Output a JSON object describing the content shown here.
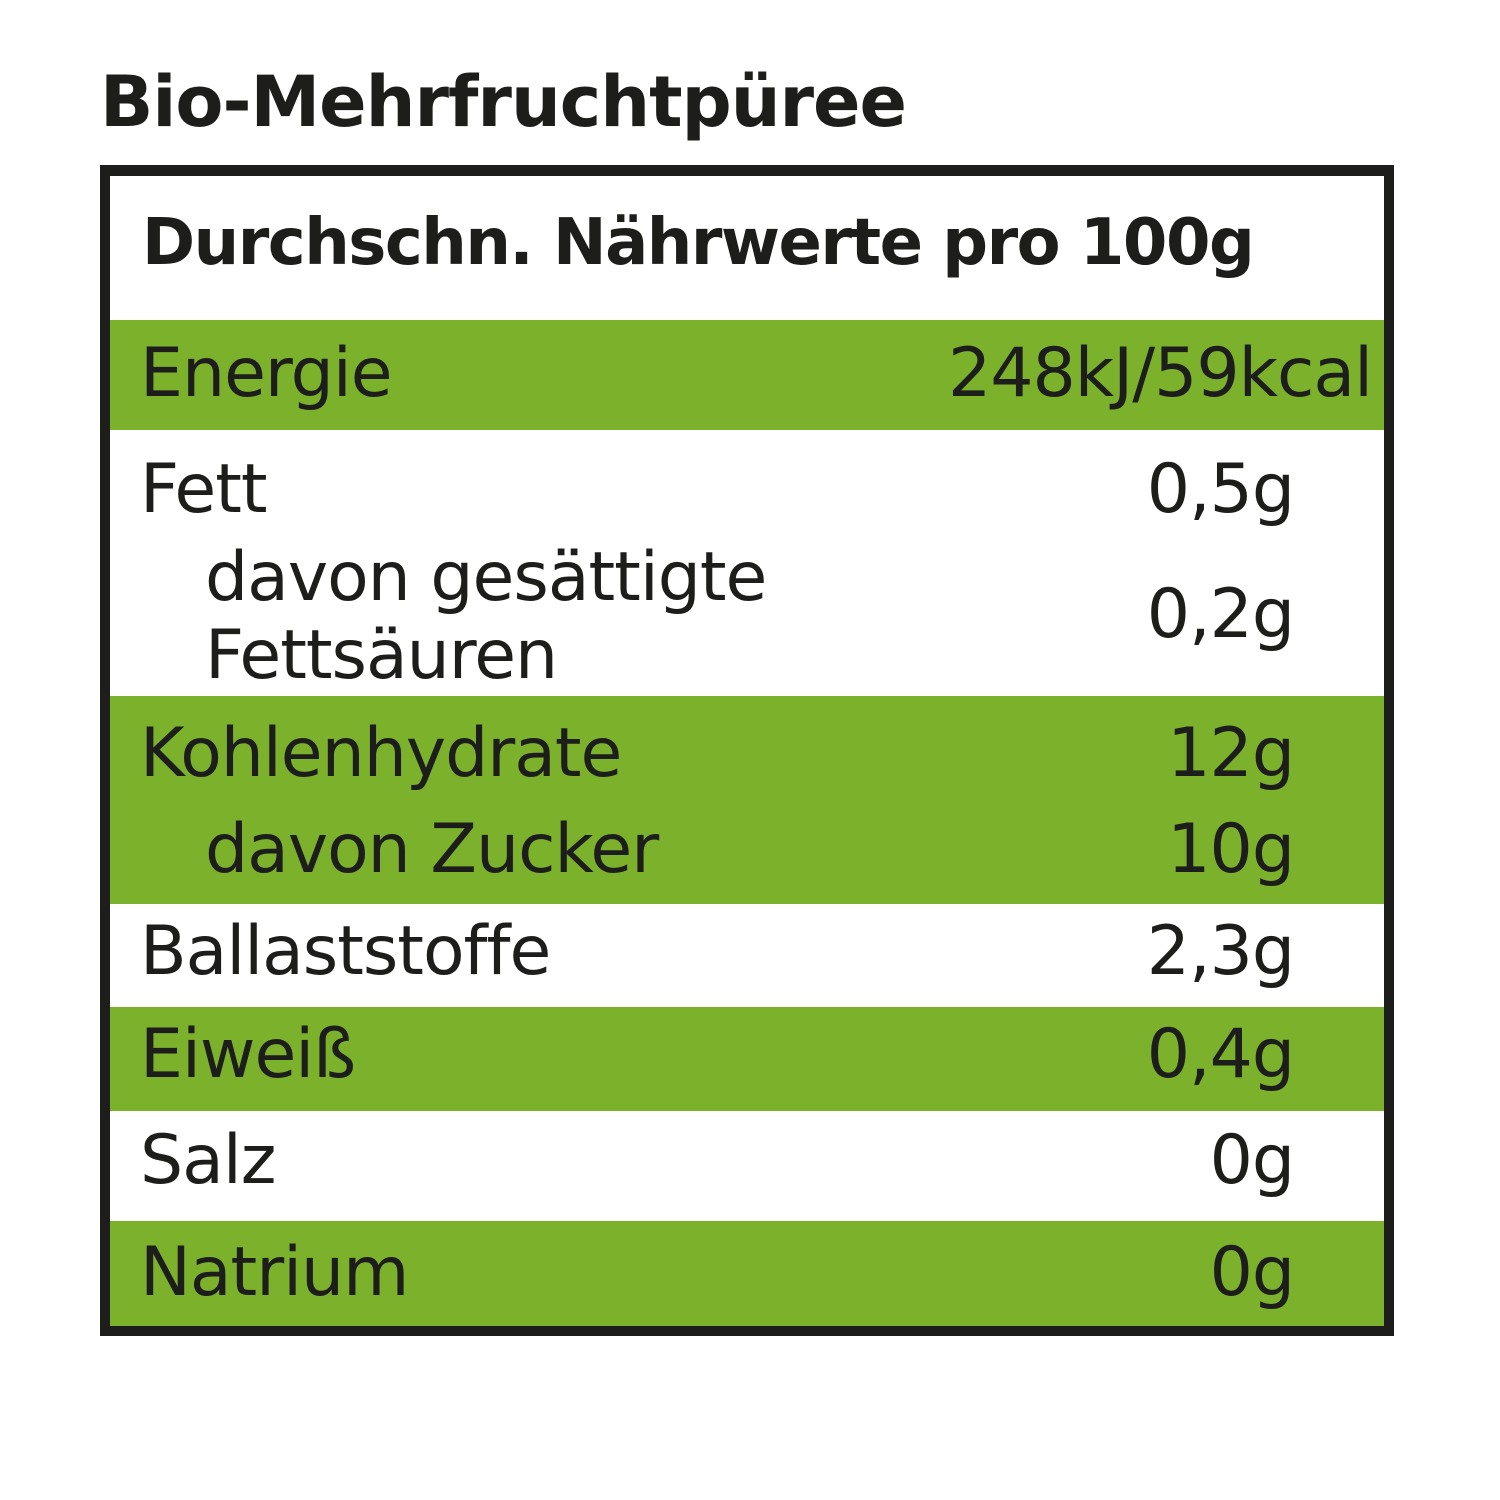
{
  "title": "Bio-Mehrfruchtpüree",
  "table": {
    "header": "Durchschn. Nährwerte pro 100g",
    "rows": [
      {
        "label": "Energie",
        "value": "248kJ/59kcal"
      },
      {
        "label": "Fett",
        "value": "0,5g"
      },
      {
        "label": "davon gesättigte",
        "label2": "Fettsäuren",
        "value": "0,2g"
      },
      {
        "label": "Kohlenhydrate",
        "value": "12g"
      },
      {
        "label": "davon Zucker",
        "value": "10g"
      },
      {
        "label": "Ballaststoffe",
        "value": "2,3g"
      },
      {
        "label": "Eiweiß",
        "value": "0,4g"
      },
      {
        "label": "Salz",
        "value": "0g"
      },
      {
        "label": "Natrium",
        "value": "0g"
      }
    ]
  },
  "colors": {
    "accent_green": "#7cb12b",
    "border": "#1d1d1b"
  }
}
